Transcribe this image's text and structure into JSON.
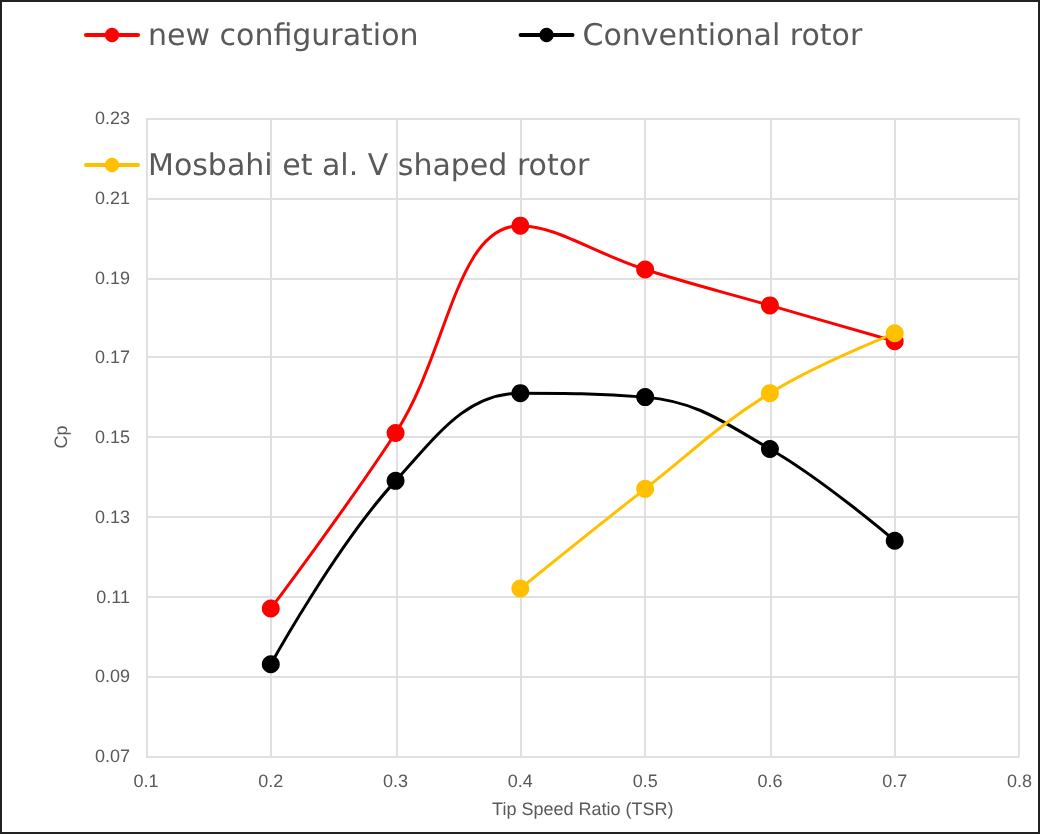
{
  "chart_data": {
    "type": "line",
    "xlabel": "Tip Speed Ratio (TSR)",
    "ylabel": "Cp",
    "xlim": [
      0.1,
      0.8
    ],
    "xticks": [
      0.1,
      0.2,
      0.3,
      0.4,
      0.5,
      0.6,
      0.7,
      0.8
    ],
    "ylim": [
      0.07,
      0.23
    ],
    "yticks": [
      0.07,
      0.09,
      0.11,
      0.13,
      0.15,
      0.17,
      0.19,
      0.21,
      0.23
    ],
    "grid": true,
    "legend": "top left",
    "marker": "circle",
    "line_style": "solid",
    "series": [
      {
        "name": "new configuration",
        "color": "#ff0000",
        "x": [
          0.2,
          0.3,
          0.4,
          0.5,
          0.6,
          0.7
        ],
        "values": [
          0.107,
          0.151,
          0.203,
          0.192,
          0.183,
          0.174
        ]
      },
      {
        "name": "Conventional rotor",
        "color": "#000000",
        "x": [
          0.2,
          0.3,
          0.4,
          0.5,
          0.6,
          0.7
        ],
        "values": [
          0.093,
          0.139,
          0.161,
          0.16,
          0.147,
          0.124
        ]
      },
      {
        "name": "Mosbahi et al. V shaped rotor",
        "color": "#ffc000",
        "x": [
          0.4,
          0.5,
          0.6,
          0.7
        ],
        "values": [
          0.112,
          0.137,
          0.161,
          0.176
        ]
      }
    ]
  }
}
